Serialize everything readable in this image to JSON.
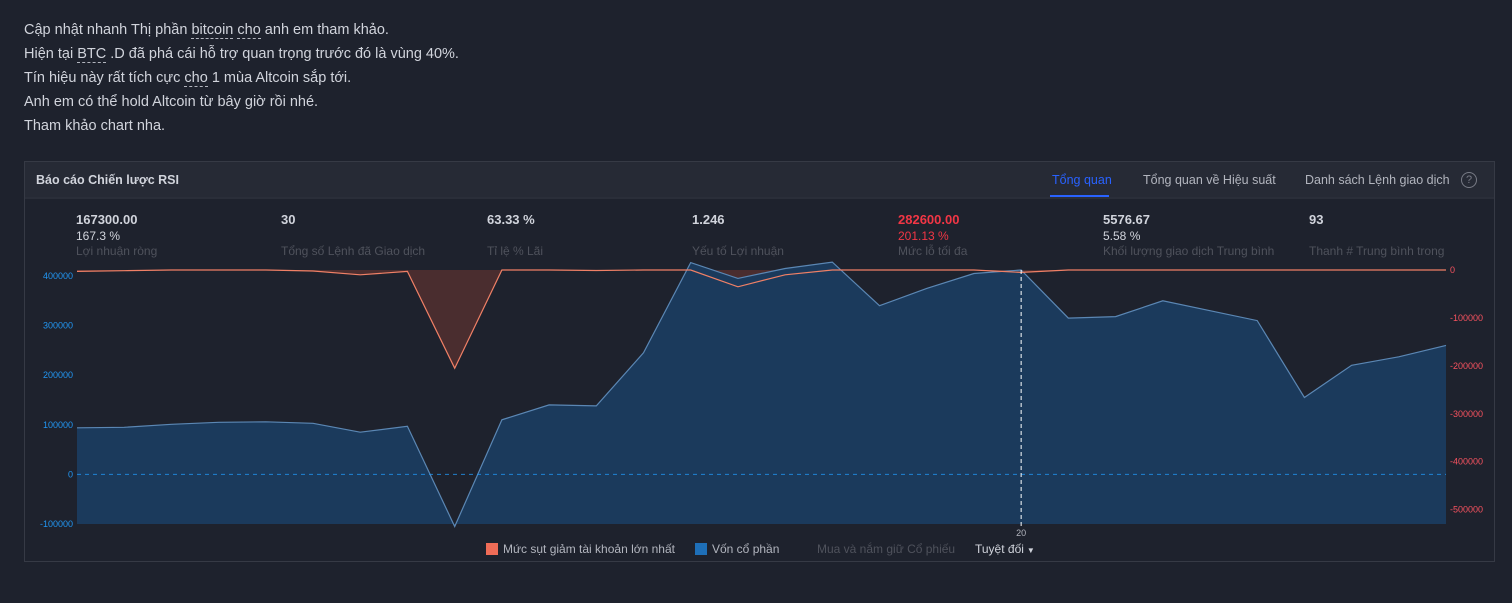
{
  "intro": [
    {
      "parts": [
        {
          "t": "Cập nhật nhanh Thị phần "
        },
        {
          "t": "bitcoin",
          "u": true
        },
        {
          "t": " "
        },
        {
          "t": "cho",
          "u": true
        },
        {
          "t": " anh em tham khảo."
        }
      ]
    },
    {
      "parts": [
        {
          "t": "Hiện tại "
        },
        {
          "t": "BTC",
          "u": true
        },
        {
          "t": " .D đã phá cái hỗ trợ quan trọng trước đó là vùng 40%."
        }
      ]
    },
    {
      "parts": [
        {
          "t": "Tín hiệu này rất tích cực "
        },
        {
          "t": "cho",
          "u": true
        },
        {
          "t": " 1 mùa Altcoin sắp tới."
        }
      ]
    },
    {
      "parts": [
        {
          "t": "Anh em có thể hold Altcoin từ bây giờ rồi nhé."
        }
      ]
    },
    {
      "parts": [
        {
          "t": "Tham khảo chart nha."
        }
      ]
    }
  ],
  "panel": {
    "title": "Báo cáo Chiến lược RSI",
    "tabs": [
      {
        "label": "Tổng quan",
        "active": true
      },
      {
        "label": "Tổng quan về Hiệu suất",
        "active": false
      },
      {
        "label": "Danh sách Lệnh giao dịch",
        "active": false
      }
    ],
    "help": "?"
  },
  "stats": [
    {
      "value": "167300.00",
      "sub": "167.3 %",
      "label": "Lợi nhuận ròng",
      "negative": false
    },
    {
      "value": "30",
      "sub": "",
      "label": "Tổng số Lệnh đã Giao dịch",
      "negative": false
    },
    {
      "value": "63.33 %",
      "sub": "",
      "label": "Tỉ lệ % Lãi",
      "negative": false
    },
    {
      "value": "1.246",
      "sub": "",
      "label": "Yếu tố Lợi nhuận",
      "negative": false
    },
    {
      "value": "282600.00",
      "sub": "201.13 %",
      "label": "Mức lỗ tối đa",
      "negative": true
    },
    {
      "value": "5576.67",
      "sub": "5.58 %",
      "label": "Khối lượng giao dịch Trung bình",
      "negative": false
    },
    {
      "value": "93",
      "sub": "",
      "label": "Thanh # Trung bình trong",
      "negative": false
    }
  ],
  "colors": {
    "equity_fill": "#1b3a5c",
    "equity_line": "#5b87b4",
    "drawdown_fill": "#4a2d2f",
    "drawdown_line": "#f08066",
    "left_axis": "#2196f3",
    "right_axis": "#f7525f",
    "swatch_drawdown": "#ef6c57",
    "swatch_equity": "#1e6fb8"
  },
  "chart_data": {
    "type": "area",
    "x_tick_label": "20",
    "x_tick_index": 20,
    "series": [
      {
        "name": "Vốn cổ phần",
        "axis": "left",
        "values": [
          94000,
          95000,
          101000,
          105000,
          106000,
          103000,
          85000,
          97000,
          -105000,
          110000,
          140000,
          138000,
          245000,
          427000,
          395000,
          415000,
          428000,
          340000,
          375000,
          405000,
          412000,
          315000,
          318000,
          350000,
          330000,
          310000,
          155000,
          220000,
          237000,
          260000
        ]
      },
      {
        "name": "Mức sụt giảm tài khoản lớn nhất",
        "axis": "right",
        "values": [
          -3000,
          -1500,
          0,
          0,
          0,
          -2000,
          -10000,
          -3000,
          -205000,
          0,
          0,
          -1000,
          0,
          0,
          -35000,
          -10000,
          0,
          0,
          0,
          0,
          -5000,
          0,
          0,
          0,
          0,
          0,
          0,
          0,
          0,
          0
        ]
      }
    ],
    "left_axis": {
      "min": -100000,
      "max": 400000,
      "ticks": [
        -100000,
        0,
        100000,
        200000,
        300000,
        400000
      ]
    },
    "right_axis": {
      "min": -500000,
      "max": 0,
      "ticks": [
        0,
        -100000,
        -200000,
        -300000,
        -400000,
        -500000
      ]
    },
    "zero_line": true
  },
  "legend": {
    "drawdown": "Mức sụt giảm tài khoản lớn nhất",
    "equity": "Vốn cổ phần",
    "buyhold": "Mua và nắm giữ Cổ phiếu",
    "mode": "Tuyệt đối"
  }
}
